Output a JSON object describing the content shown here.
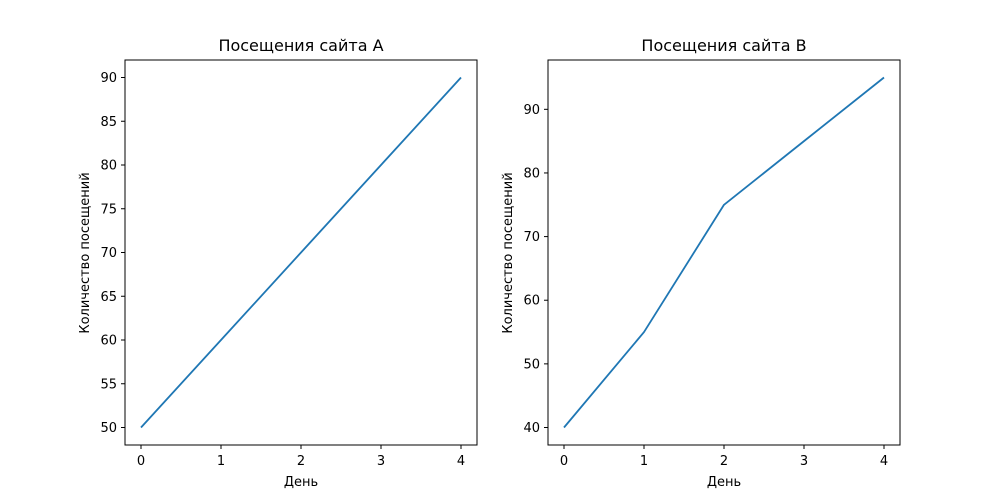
{
  "chart_data": [
    {
      "type": "line",
      "title": "Посещения сайта A",
      "xlabel": "День",
      "ylabel": "Количество посещений",
      "x": [
        0,
        1,
        2,
        3,
        4
      ],
      "series": [
        {
          "values": [
            50,
            60,
            70,
            80,
            90
          ],
          "color": "#1f77b4"
        }
      ],
      "xlim": [
        -0.2,
        4.2
      ],
      "ylim": [
        48,
        92
      ],
      "xticks": [
        0,
        1,
        2,
        3,
        4
      ],
      "yticks": [
        50,
        55,
        60,
        65,
        70,
        75,
        80,
        85,
        90
      ],
      "grid": false
    },
    {
      "type": "line",
      "title": "Посещения сайта B",
      "xlabel": "День",
      "ylabel": "Количество посещений",
      "x": [
        0,
        1,
        2,
        3,
        4
      ],
      "series": [
        {
          "values": [
            40,
            55,
            75,
            85,
            95
          ],
          "color": "#1f77b4"
        }
      ],
      "xlim": [
        -0.2,
        4.2
      ],
      "ylim": [
        37.25,
        97.75
      ],
      "xticks": [
        0,
        1,
        2,
        3,
        4
      ],
      "yticks": [
        40,
        50,
        60,
        70,
        80,
        90
      ],
      "grid": false
    }
  ]
}
